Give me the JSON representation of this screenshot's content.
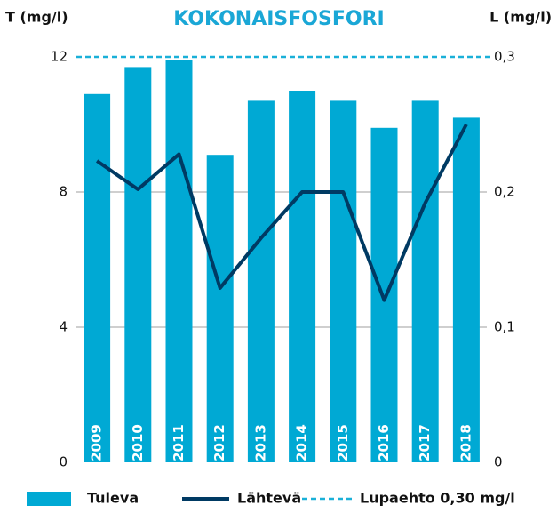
{
  "chart_data": {
    "type": "bar-line",
    "title": "KOKONAISFOSFORI",
    "y_label": "T (mg/l)",
    "y2_label": "L (mg/l)",
    "categories": [
      "2009",
      "2010",
      "2011",
      "2012",
      "2013",
      "2014",
      "2015",
      "2016",
      "2017",
      "2018"
    ],
    "series": [
      {
        "name": "Tuleva",
        "type": "bar",
        "color": "#00a9d4",
        "values": [
          10.9,
          11.7,
          11.9,
          9.1,
          10.7,
          11.0,
          10.7,
          9.9,
          10.7,
          10.2
        ]
      },
      {
        "name": "Lähtevä",
        "type": "line",
        "axis": "y2",
        "color": "#003a63",
        "values": [
          0.223,
          0.202,
          0.228,
          0.129,
          0.166,
          0.2,
          0.2,
          0.12,
          0.192,
          0.25
        ]
      }
    ],
    "limit": {
      "name": "Lupaehto 0,30 mg/l",
      "value": 0.3,
      "axis": "y2",
      "color": "#1ab0d8"
    },
    "ylim": [
      0,
      12
    ],
    "yticks": [
      0,
      4,
      8,
      12
    ],
    "y2lim": [
      0,
      0.3
    ],
    "y2ticks": [
      0,
      {
        "value": 0.1,
        "label": "0,1"
      },
      {
        "value": 0.2,
        "label": "0,2"
      },
      {
        "value": 0.3,
        "label": "0,3"
      }
    ],
    "grid": true
  }
}
